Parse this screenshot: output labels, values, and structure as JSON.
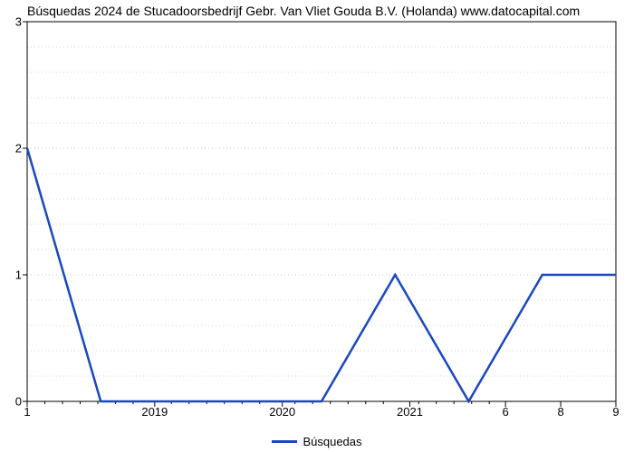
{
  "chart": {
    "type": "line",
    "title": "Búsquedas 2024 de Stucadoorsbedrijf Gebr. Van Vliet Gouda B.V. (Holanda) www.datocapital.com",
    "title_fontsize": 14,
    "background_color": "#ffffff",
    "plot_border_color": "#000000",
    "grid_color": "#cccccc",
    "grid_dash": "1 3",
    "axis_color": "#000000",
    "tick_font_size": 13,
    "series": {
      "label": "Búsquedas",
      "color": "#1947c0",
      "line_width": 2.5,
      "x": [
        1,
        2,
        3,
        4,
        5,
        6,
        7,
        8,
        9
      ],
      "y": [
        2,
        0,
        0,
        0,
        0,
        1,
        0,
        1,
        1
      ]
    },
    "y_axis": {
      "min": 0,
      "max": 3,
      "ticks": [
        0,
        1,
        2,
        3
      ],
      "minor_step": 0.2
    },
    "x_axis": {
      "min": 1,
      "max": 9,
      "major_ticks": [
        {
          "pos": 1,
          "label": "1"
        },
        {
          "pos": 2.733,
          "label": "2019"
        },
        {
          "pos": 4.467,
          "label": "2020"
        },
        {
          "pos": 6.2,
          "label": "2021"
        },
        {
          "pos": 7.5,
          "label": "6"
        },
        {
          "pos": 8.25,
          "label": "8"
        },
        {
          "pos": 9,
          "label": "9"
        }
      ],
      "minor_relpos": [
        0.03,
        0.06,
        0.09,
        0.12,
        0.15,
        0.18,
        0.245,
        0.275,
        0.305,
        0.335,
        0.365,
        0.395,
        0.455,
        0.485,
        0.515,
        0.545,
        0.575,
        0.605,
        0.665,
        0.695,
        0.725,
        0.755,
        0.785
      ]
    },
    "legend": {
      "label": "Búsquedas",
      "line_color": "#1947c0",
      "line_width": 3
    }
  }
}
